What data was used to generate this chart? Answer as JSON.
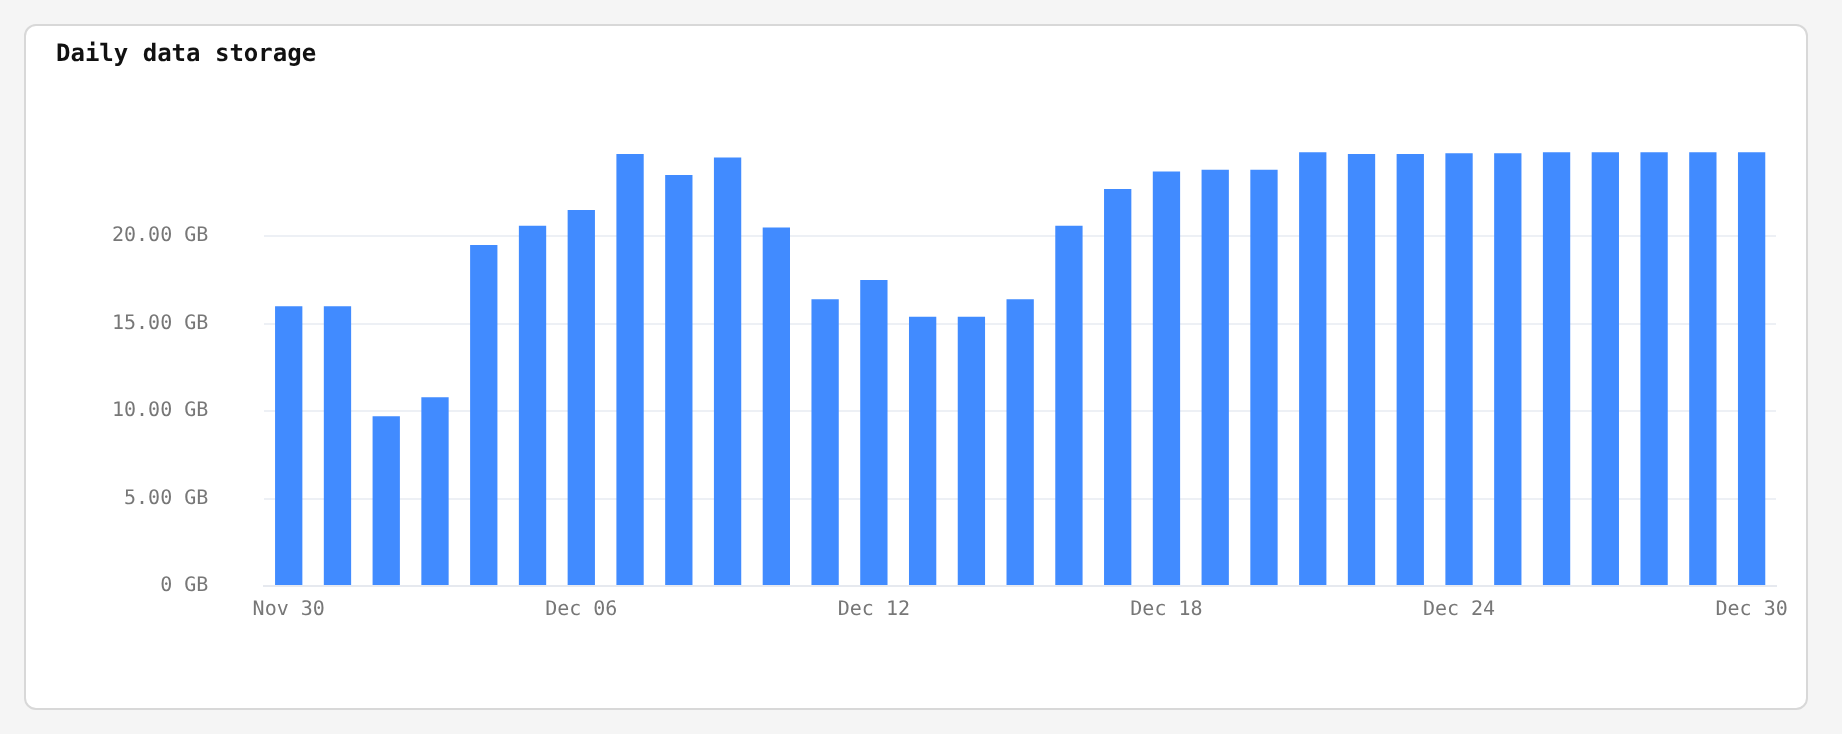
{
  "chart_data": {
    "type": "bar",
    "title": "Daily data storage",
    "categories": [
      "Nov 30",
      null,
      null,
      null,
      null,
      null,
      "Dec 06",
      null,
      null,
      null,
      null,
      null,
      "Dec 12",
      null,
      null,
      null,
      null,
      null,
      "Dec 18",
      null,
      null,
      null,
      null,
      null,
      "Dec 24",
      null,
      null,
      null,
      null,
      null,
      "Dec 30"
    ],
    "values": [
      16.0,
      16.0,
      9.7,
      10.8,
      19.5,
      20.6,
      21.5,
      24.7,
      23.5,
      24.5,
      20.5,
      16.4,
      17.5,
      15.4,
      15.4,
      16.4,
      20.6,
      22.7,
      23.7,
      23.8,
      23.8,
      24.8,
      24.7,
      24.7,
      24.75,
      24.75,
      24.8,
      24.8,
      24.8,
      24.8,
      24.8
    ],
    "color": "#418bff",
    "ylim": [
      0,
      25
    ],
    "yticks": [
      {
        "value": 0,
        "label": "0 GB"
      },
      {
        "value": 5,
        "label": "5.00 GB"
      },
      {
        "value": 10,
        "label": "10.00 GB"
      },
      {
        "value": 15,
        "label": "15.00 GB"
      },
      {
        "value": 20,
        "label": "20.00 GB"
      }
    ],
    "grid": "y"
  }
}
